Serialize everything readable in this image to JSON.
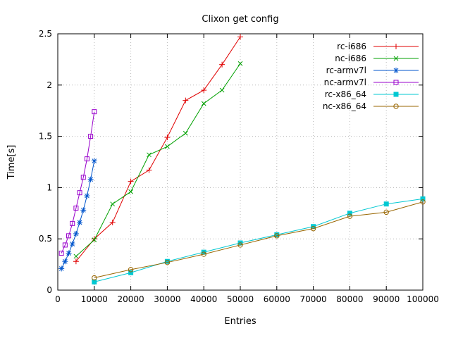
{
  "chart_data": {
    "type": "line",
    "title": "Clixon get config",
    "xlabel": "Entries",
    "ylabel": "Time[s]",
    "xlim": [
      0,
      100000
    ],
    "ylim": [
      0,
      2.5
    ],
    "xticks": [
      0,
      10000,
      20000,
      30000,
      40000,
      50000,
      60000,
      70000,
      80000,
      90000,
      100000
    ],
    "yticks": [
      0,
      0.5,
      1,
      1.5,
      2,
      2.5
    ],
    "grid": "dotted",
    "legend_position": "top-right-inside",
    "series": [
      {
        "name": "rc-i686",
        "color": "#e00000",
        "marker": "plus",
        "x": [
          5000,
          10000,
          15000,
          20000,
          25000,
          30000,
          35000,
          40000,
          45000,
          50000
        ],
        "y": [
          0.28,
          0.5,
          0.66,
          1.06,
          1.17,
          1.49,
          1.85,
          1.95,
          2.2,
          2.47
        ]
      },
      {
        "name": "nc-i686",
        "color": "#00a000",
        "marker": "cross",
        "x": [
          5000,
          10000,
          15000,
          20000,
          25000,
          30000,
          35000,
          40000,
          45000,
          50000
        ],
        "y": [
          0.33,
          0.49,
          0.84,
          0.96,
          1.32,
          1.4,
          1.53,
          1.82,
          1.95,
          2.21
        ]
      },
      {
        "name": "rc-armv7l",
        "color": "#0055cc",
        "marker": "asterisk",
        "x": [
          1000,
          2000,
          3000,
          4000,
          5000,
          6000,
          7000,
          8000,
          9000,
          10000
        ],
        "y": [
          0.21,
          0.28,
          0.36,
          0.45,
          0.55,
          0.66,
          0.78,
          0.92,
          1.08,
          1.26
        ]
      },
      {
        "name": "nc-armv7l",
        "color": "#9900cc",
        "marker": "square-open",
        "x": [
          1000,
          2000,
          3000,
          4000,
          5000,
          6000,
          7000,
          8000,
          9000,
          10000
        ],
        "y": [
          0.36,
          0.44,
          0.53,
          0.65,
          0.8,
          0.95,
          1.1,
          1.28,
          1.5,
          1.74
        ]
      },
      {
        "name": "rc-x86_64",
        "color": "#00c8d2",
        "marker": "square-filled",
        "x": [
          10000,
          20000,
          30000,
          40000,
          50000,
          60000,
          70000,
          80000,
          90000,
          100000
        ],
        "y": [
          0.08,
          0.17,
          0.28,
          0.37,
          0.46,
          0.54,
          0.62,
          0.75,
          0.84,
          0.89
        ]
      },
      {
        "name": "nc-x86_64",
        "color": "#996600",
        "marker": "circle-open",
        "x": [
          10000,
          20000,
          30000,
          40000,
          50000,
          60000,
          70000,
          80000,
          90000,
          100000
        ],
        "y": [
          0.12,
          0.2,
          0.27,
          0.35,
          0.44,
          0.53,
          0.6,
          0.72,
          0.76,
          0.86
        ]
      }
    ]
  }
}
